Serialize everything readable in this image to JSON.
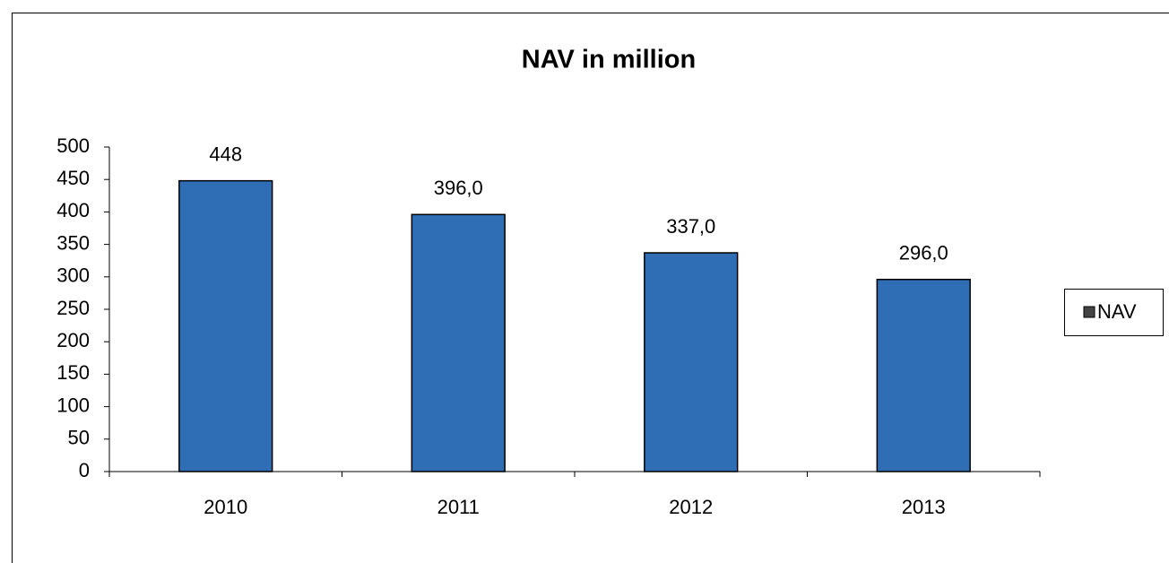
{
  "chart_data": {
    "type": "bar",
    "title": "NAV in million",
    "categories": [
      "2010",
      "2011",
      "2012",
      "2013"
    ],
    "series": [
      {
        "name": "NAV",
        "color": "#2f6db5",
        "values": [
          448,
          396,
          337,
          296
        ],
        "value_labels": [
          "448",
          "396,0",
          "337,0",
          "296,0"
        ]
      }
    ],
    "ylim": [
      0,
      500
    ],
    "yticks": [
      0,
      50,
      100,
      150,
      200,
      250,
      300,
      350,
      400,
      450,
      500
    ],
    "legend": "right"
  }
}
